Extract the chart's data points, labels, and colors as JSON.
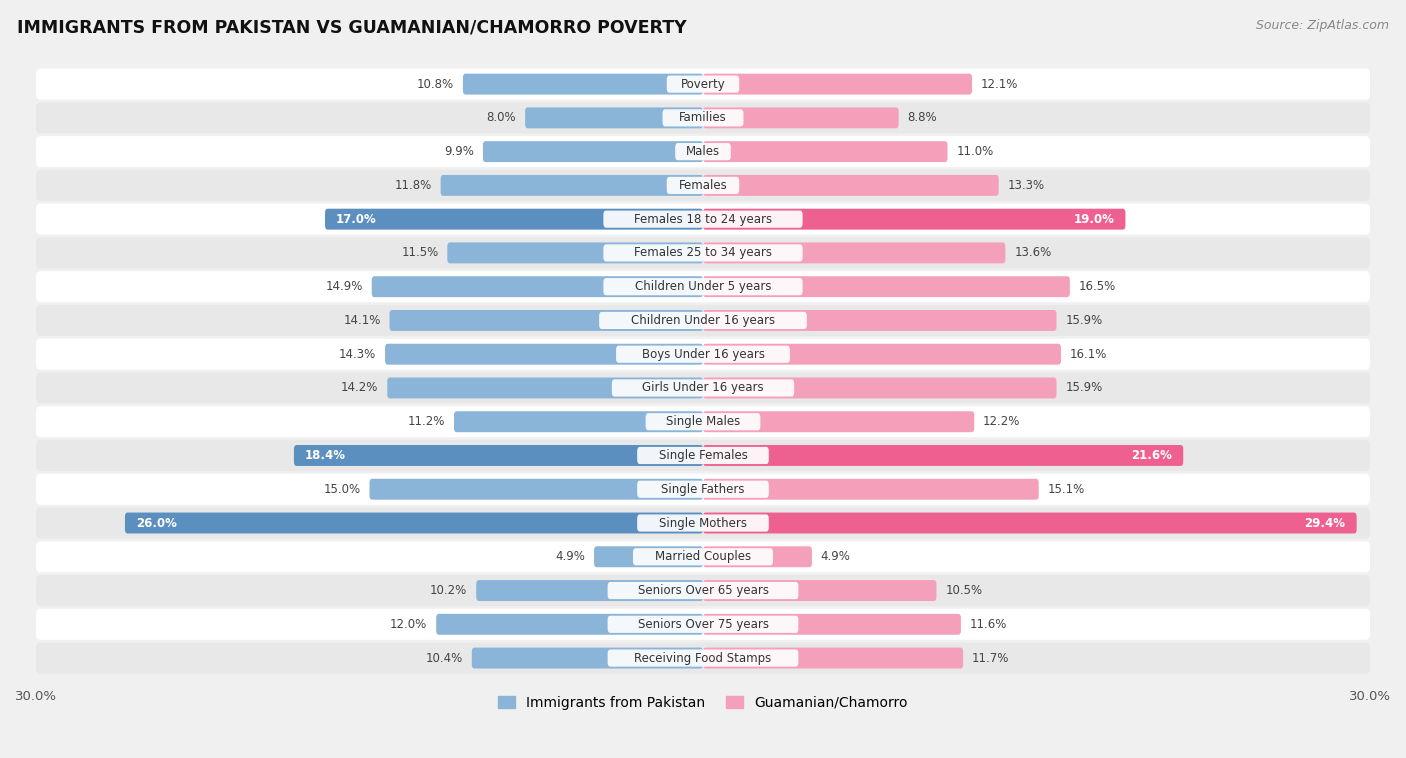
{
  "title": "IMMIGRANTS FROM PAKISTAN VS GUAMANIAN/CHAMORRO POVERTY",
  "source": "Source: ZipAtlas.com",
  "categories": [
    "Poverty",
    "Families",
    "Males",
    "Females",
    "Females 18 to 24 years",
    "Females 25 to 34 years",
    "Children Under 5 years",
    "Children Under 16 years",
    "Boys Under 16 years",
    "Girls Under 16 years",
    "Single Males",
    "Single Females",
    "Single Fathers",
    "Single Mothers",
    "Married Couples",
    "Seniors Over 65 years",
    "Seniors Over 75 years",
    "Receiving Food Stamps"
  ],
  "pakistan_values": [
    10.8,
    8.0,
    9.9,
    11.8,
    17.0,
    11.5,
    14.9,
    14.1,
    14.3,
    14.2,
    11.2,
    18.4,
    15.0,
    26.0,
    4.9,
    10.2,
    12.0,
    10.4
  ],
  "guamanian_values": [
    12.1,
    8.8,
    11.0,
    13.3,
    19.0,
    13.6,
    16.5,
    15.9,
    16.1,
    15.9,
    12.2,
    21.6,
    15.1,
    29.4,
    4.9,
    10.5,
    11.6,
    11.7
  ],
  "pakistan_color": "#8ab4d8",
  "guamanian_color": "#f5a0ba",
  "pakistan_highlight_color": "#5b8fc0",
  "guamanian_highlight_color": "#ee6090",
  "highlight_rows": [
    4,
    11,
    13
  ],
  "background_color": "#f0f0f0",
  "row_bg_color": "#e8e8e8",
  "row_bg_white": "#ffffff",
  "xlim": 30.0,
  "legend_label_pakistan": "Immigrants from Pakistan",
  "legend_label_guamanian": "Guamanian/Chamorro",
  "bar_height": 0.62
}
